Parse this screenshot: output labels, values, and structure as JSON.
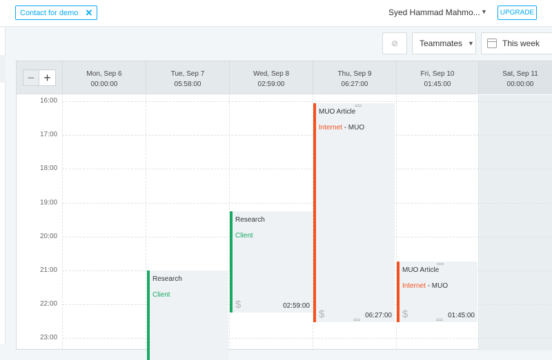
{
  "topbar": {
    "demo_label": "Contact for demo",
    "demo_close": "✕",
    "user_name": "Syed Hammad Mahmo...",
    "upgrade_label": "UPGRADE"
  },
  "toolbar": {
    "sync_icon": "⊘",
    "teammates_label": "Teammates",
    "week_label": "This week"
  },
  "zoom": {
    "out": "−",
    "in": "+"
  },
  "days": [
    {
      "label": "Mon, Sep 6",
      "total": "00:00:00"
    },
    {
      "label": "Tue, Sep 7",
      "total": "05:58:00"
    },
    {
      "label": "Wed, Sep 8",
      "total": "02:59:00"
    },
    {
      "label": "Thu, Sep 9",
      "total": "06:27:00"
    },
    {
      "label": "Fri, Sep 10",
      "total": "01:45:00"
    },
    {
      "label": "Sat, Sep 11",
      "total": "00:00:00"
    }
  ],
  "hours": [
    "16:00",
    "17:00",
    "18:00",
    "19:00",
    "20:00",
    "21:00",
    "22:00",
    "23:00"
  ],
  "colors": {
    "accent": "#03a9f4",
    "green": "#1aa963",
    "orange": "#f4511e"
  },
  "entries": [
    {
      "description": "Research",
      "project": "Client",
      "client": "",
      "color": "green",
      "duration": "",
      "day": "Tue, Sep 7",
      "start": "21:00"
    },
    {
      "description": "Research",
      "project": "Client",
      "client": "",
      "color": "green",
      "duration": "02:59:00",
      "day": "Wed, Sep 8",
      "start": "19:15"
    },
    {
      "description": "MUO Article",
      "project": "Internet",
      "client": "- MUO",
      "color": "orange",
      "duration": "06:27:00",
      "day": "Thu, Sep 9",
      "start": "16:00"
    },
    {
      "description": "MUO Article",
      "project": "Internet",
      "client": "- MUO",
      "color": "orange",
      "duration": "01:45:00",
      "day": "Fri, Sep 10",
      "start": "20:45"
    }
  ]
}
